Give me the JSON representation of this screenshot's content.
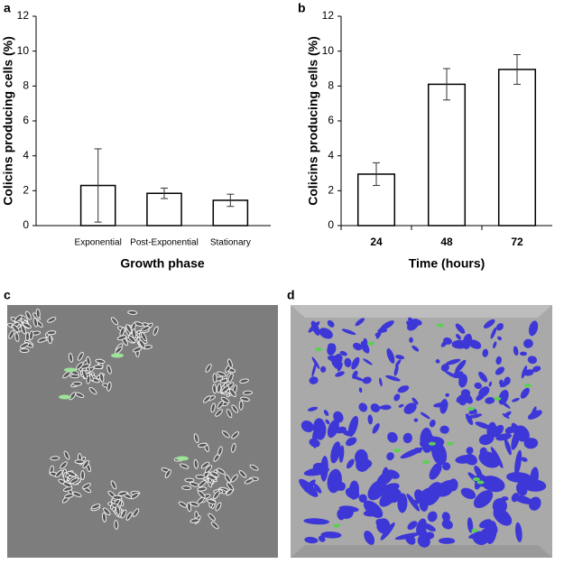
{
  "chart_data": [
    {
      "type": "bar",
      "label": "a",
      "ylabel": "Colicins producing cells (%)",
      "xlabel": "Growth phase",
      "categories": [
        "Exponential",
        "Post-Exponential",
        "Stationary"
      ],
      "values": [
        2.3,
        1.85,
        1.45
      ],
      "errors": [
        2.1,
        0.3,
        0.35
      ],
      "color": "#ffffff",
      "ylim": [
        0,
        12
      ],
      "yticks": [
        0,
        2,
        4,
        6,
        8,
        10,
        12
      ]
    },
    {
      "type": "bar",
      "label": "b",
      "ylabel": "Colicins producing cells (%)",
      "xlabel": "Time (hours)",
      "categories": [
        "24",
        "48",
        "72"
      ],
      "values": [
        2.95,
        8.1,
        8.95
      ],
      "errors": [
        0.65,
        0.9,
        0.85
      ],
      "color": "#ffffff",
      "ylim": [
        0,
        12
      ],
      "yticks": [
        0,
        2,
        4,
        6,
        8,
        10,
        12
      ]
    }
  ],
  "panels": [
    {
      "label": "c"
    },
    {
      "label": "d"
    }
  ]
}
